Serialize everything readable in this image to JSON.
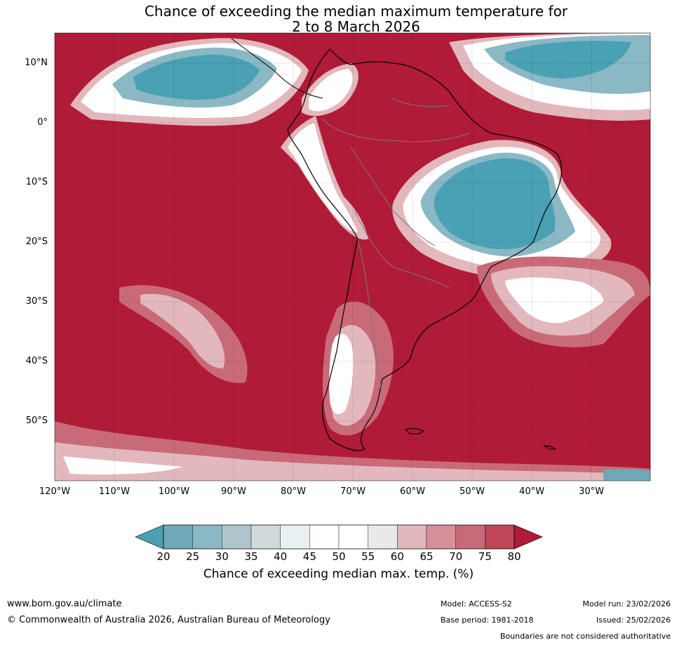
{
  "title": {
    "line1": "Chance of exceeding the median maximum temperature for",
    "line2": "2 to 8 March 2026"
  },
  "map": {
    "lat_labels": [
      "10°N",
      "0°",
      "10°S",
      "20°S",
      "30°S",
      "40°S",
      "50°S"
    ],
    "lon_labels": [
      "120°W",
      "110°W",
      "100°W",
      "90°W",
      "80°W",
      "70°W",
      "60°W",
      "50°W",
      "40°W",
      "30°W"
    ],
    "colors": {
      "c20": "#49a1b3",
      "c25": "#6fa9b7",
      "c30": "#8bb8c5",
      "c35": "#aec6cb",
      "c40": "#d2d9dc",
      "c45": "#e9f0f2",
      "c50": "#ffffff",
      "c55": "#ffffff",
      "c60": "#e9e9e9",
      "c65": "#e2b8bd",
      "c70": "#d5909a",
      "c75": "#c96a78",
      "c80": "#bd4658",
      "c80plus": "#b01b37"
    }
  },
  "colorbar": {
    "ticks": [
      "20",
      "25",
      "30",
      "35",
      "40",
      "45",
      "50",
      "55",
      "60",
      "65",
      "70",
      "75",
      "80"
    ],
    "label": "Chance of exceeding median max. temp. (%)"
  },
  "footer": {
    "website": "www.bom.gov.au/climate",
    "copyright": "© Commonwealth of Australia 2026, Australian Bureau of Meteorology",
    "model": "Model: ACCESS-S2",
    "base_period": "Base period: 1981-2018",
    "model_run": "Model run: 23/02/2026",
    "issued": "Issued: 25/02/2026",
    "disclaimer": "Boundaries are not considered authoritative"
  }
}
